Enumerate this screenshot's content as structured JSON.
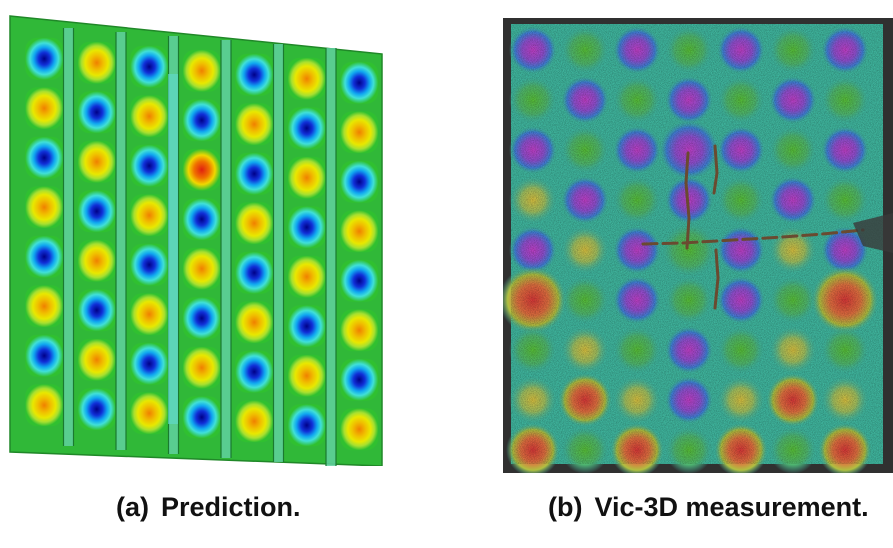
{
  "figure": {
    "panel_a": {
      "tag": "(a)",
      "caption": "Prediction.",
      "content": "FE-predicted buckling mode shape contour of a stiffened panel with seven bays showing alternating blue/red half-waves",
      "colors": {
        "trough": "#1030d8",
        "mid": "#30c030",
        "peak": "#e02010",
        "stiffener": "#5fd8c8"
      }
    },
    "panel_b": {
      "tag": "(b)",
      "caption": "Vic-3D measurement.",
      "content": "Digital image correlation measured out-of-plane displacement overlay on speckled test panel with cracks near center",
      "colors": {
        "trough": "#b040c8",
        "mid": "#40b8a0",
        "peak": "#d83838",
        "background": "#303030"
      }
    }
  }
}
